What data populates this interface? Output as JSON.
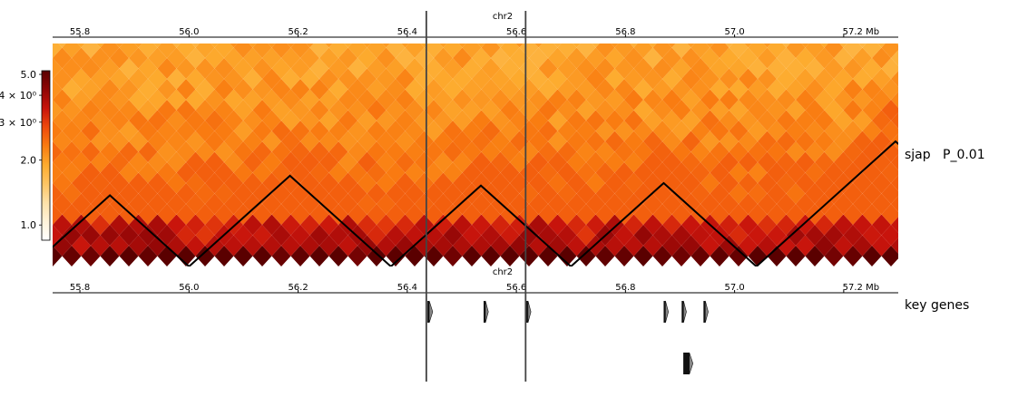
{
  "chrom": "chr2",
  "top_axis": {
    "chrom_label": "chr2",
    "ticks": [
      "55.8",
      "56.0",
      "56.2",
      "56.4",
      "56.6",
      "56.8",
      "57.0",
      "57.2 Mb"
    ],
    "tick_values": [
      55.8,
      56.0,
      56.2,
      56.4,
      56.6,
      56.8,
      57.0,
      57.2
    ]
  },
  "bottom_axis": {
    "chrom_label": "chr2",
    "ticks": [
      "55.8",
      "56.0",
      "56.2",
      "56.4",
      "56.6",
      "56.8",
      "57.0",
      "57.2 Mb"
    ],
    "tick_values": [
      55.8,
      56.0,
      56.2,
      56.4,
      56.6,
      56.8,
      57.0,
      57.2
    ]
  },
  "region_mb": [
    55.75,
    57.3
  ],
  "highlight_lines_mb": [
    56.435,
    56.617
  ],
  "tracks": {
    "hic_label": "sjap   P_0.01",
    "genes_label": "key genes"
  },
  "colorbar": {
    "scale": "log",
    "range": [
      0.85,
      5.2
    ],
    "labels": [
      {
        "text": "5.0",
        "value": 5.0
      },
      {
        "text": "4 × 10⁰",
        "value": 4.0
      },
      {
        "text": "3 × 10⁰",
        "value": 3.0
      },
      {
        "text": "2.0",
        "value": 2.0
      },
      {
        "text": "1.0",
        "value": 1.0
      }
    ],
    "colors": [
      "#ffffff",
      "#fff3d9",
      "#fee1a8",
      "#fec463",
      "#fdab2e",
      "#f97c11",
      "#ee4a0c",
      "#c8140c",
      "#900606",
      "#5a0000"
    ]
  },
  "tad_boundaries_mb": [
    55.71,
    56.0,
    56.37,
    56.7,
    57.04,
    57.55
  ],
  "genes": [
    {
      "start_mb": 56.437,
      "end_mb": 56.445,
      "row": 0
    },
    {
      "start_mb": 56.54,
      "end_mb": 56.547,
      "row": 0
    },
    {
      "start_mb": 56.618,
      "end_mb": 56.625,
      "row": 0
    },
    {
      "start_mb": 56.87,
      "end_mb": 56.877,
      "row": 0
    },
    {
      "start_mb": 56.903,
      "end_mb": 56.91,
      "row": 0
    },
    {
      "start_mb": 56.943,
      "end_mb": 56.95,
      "row": 0
    },
    {
      "start_mb": 56.906,
      "end_mb": 56.922,
      "row": 1
    }
  ]
}
